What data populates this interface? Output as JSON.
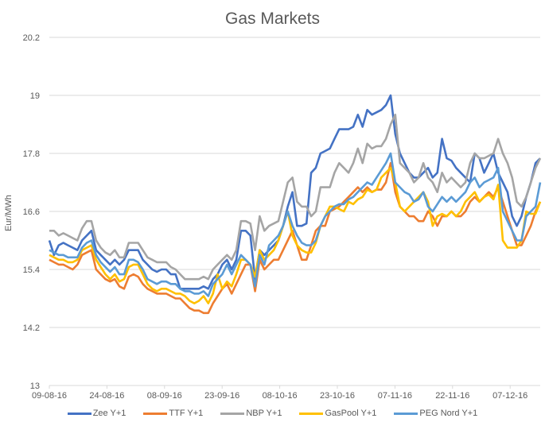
{
  "chart_data": {
    "type": "line",
    "title": "Gas Markets",
    "xlabel": "",
    "ylabel": "Eur/MWh",
    "ylim": [
      13,
      20.2
    ],
    "yticks": [
      13,
      14.2,
      15.4,
      16.6,
      17.8,
      19,
      20.2
    ],
    "ytick_labels": [
      "13",
      "14.2",
      "15.4",
      "16.6",
      "17.8",
      "19",
      "20.2"
    ],
    "xtick_labels": [
      "09-08-16",
      "24-08-16",
      "08-09-16",
      "23-09-16",
      "08-10-16",
      "23-10-16",
      "07-11-16",
      "22-11-16",
      "07-12-16"
    ],
    "grid": true,
    "legend_position": "bottom",
    "series": [
      {
        "name": "Zee Y+1",
        "color": "#4472C4",
        "values": [
          16.0,
          15.7,
          15.9,
          15.95,
          15.9,
          15.85,
          15.8,
          16.0,
          16.1,
          16.2,
          15.8,
          15.7,
          15.6,
          15.5,
          15.6,
          15.5,
          15.6,
          15.8,
          15.8,
          15.8,
          15.6,
          15.5,
          15.4,
          15.35,
          15.4,
          15.4,
          15.3,
          15.3,
          15.0,
          15.0,
          15.0,
          15.0,
          15.0,
          15.05,
          15.0,
          15.2,
          15.3,
          15.5,
          15.6,
          15.4,
          15.6,
          16.2,
          16.2,
          16.1,
          15.2,
          15.8,
          15.7,
          15.8,
          15.9,
          16.0,
          16.3,
          16.7,
          17.0,
          16.3,
          16.3,
          16.35,
          17.4,
          17.5,
          17.8,
          17.85,
          17.9,
          18.1,
          18.3,
          18.3,
          18.3,
          18.35,
          18.6,
          18.35,
          18.7,
          18.6,
          18.65,
          18.7,
          18.8,
          19.0,
          18.2,
          17.8,
          17.6,
          17.4,
          17.3,
          17.3,
          17.4,
          17.5,
          17.3,
          17.4,
          18.1,
          17.7,
          17.65,
          17.5,
          17.4,
          17.3,
          17.2,
          17.8,
          17.7,
          17.4,
          17.6,
          17.8,
          17.4,
          17.2,
          17.0,
          16.5,
          16.3,
          16.5,
          16.9,
          17.2,
          17.6,
          17.7
        ]
      },
      {
        "name": "TTF Y+1",
        "color": "#ED7D31",
        "values": [
          15.6,
          15.55,
          15.5,
          15.5,
          15.45,
          15.4,
          15.5,
          15.7,
          15.75,
          15.8,
          15.4,
          15.3,
          15.2,
          15.15,
          15.2,
          15.05,
          15.0,
          15.25,
          15.3,
          15.25,
          15.1,
          15.0,
          14.95,
          14.9,
          14.9,
          14.9,
          14.85,
          14.8,
          14.8,
          14.7,
          14.6,
          14.55,
          14.55,
          14.5,
          14.5,
          14.7,
          14.85,
          15.0,
          15.1,
          14.9,
          15.1,
          15.3,
          15.5,
          15.5,
          14.95,
          15.6,
          15.4,
          15.5,
          15.6,
          15.6,
          15.8,
          16.0,
          16.2,
          15.9,
          15.6,
          15.6,
          15.9,
          16.2,
          16.3,
          16.3,
          16.6,
          16.65,
          16.7,
          16.8,
          16.9,
          17.0,
          17.1,
          17.0,
          17.1,
          17.0,
          17.05,
          17.05,
          17.2,
          17.6,
          17.0,
          16.7,
          16.6,
          16.5,
          16.5,
          16.4,
          16.4,
          16.6,
          16.5,
          16.3,
          16.5,
          16.5,
          16.6,
          16.5,
          16.5,
          16.6,
          16.8,
          16.9,
          16.8,
          16.9,
          17.0,
          16.9,
          17.1,
          16.8,
          16.5,
          16.2,
          15.9,
          15.9,
          16.1,
          16.3,
          16.6,
          16.8
        ]
      },
      {
        "name": "NBP Y+1",
        "color": "#A5A5A5",
        "values": [
          16.2,
          16.2,
          16.1,
          16.15,
          16.1,
          16.05,
          16.0,
          16.25,
          16.4,
          16.4,
          16.0,
          15.85,
          15.75,
          15.7,
          15.8,
          15.65,
          15.65,
          15.95,
          15.95,
          15.95,
          15.8,
          15.65,
          15.6,
          15.55,
          15.55,
          15.55,
          15.45,
          15.4,
          15.3,
          15.2,
          15.2,
          15.2,
          15.2,
          15.25,
          15.2,
          15.4,
          15.5,
          15.6,
          15.7,
          15.6,
          15.8,
          16.4,
          16.4,
          16.35,
          15.8,
          16.5,
          16.2,
          16.3,
          16.35,
          16.4,
          16.8,
          17.2,
          17.3,
          16.8,
          16.7,
          16.7,
          16.5,
          16.6,
          17.1,
          17.1,
          17.1,
          17.4,
          17.6,
          17.5,
          17.4,
          17.6,
          17.9,
          17.6,
          18.0,
          17.9,
          17.95,
          17.95,
          18.1,
          18.4,
          18.6,
          17.6,
          17.5,
          17.4,
          17.2,
          17.3,
          17.6,
          17.3,
          17.2,
          17.0,
          17.4,
          17.2,
          17.3,
          17.2,
          17.1,
          17.2,
          17.6,
          17.8,
          17.7,
          17.7,
          17.75,
          17.8,
          18.1,
          17.8,
          17.6,
          17.3,
          16.8,
          16.7,
          16.9,
          17.2,
          17.5,
          17.7
        ]
      },
      {
        "name": "GasPool Y+1",
        "color": "#FFC000",
        "values": [
          15.7,
          15.65,
          15.6,
          15.6,
          15.55,
          15.55,
          15.6,
          15.8,
          15.85,
          15.9,
          15.6,
          15.45,
          15.3,
          15.2,
          15.3,
          15.15,
          15.2,
          15.45,
          15.5,
          15.5,
          15.3,
          15.1,
          15.0,
          14.95,
          15.0,
          15.0,
          14.95,
          14.9,
          14.9,
          14.85,
          14.75,
          14.7,
          14.75,
          14.85,
          14.7,
          14.9,
          15.3,
          15.0,
          15.15,
          15.05,
          15.3,
          15.6,
          15.6,
          15.5,
          15.25,
          15.8,
          15.6,
          15.7,
          15.8,
          16.0,
          16.3,
          16.6,
          16.1,
          15.9,
          15.8,
          15.75,
          15.75,
          15.95,
          16.3,
          16.5,
          16.7,
          16.7,
          16.65,
          16.6,
          16.8,
          16.75,
          16.85,
          16.9,
          17.05,
          17.0,
          17.05,
          17.3,
          17.4,
          17.5,
          17.2,
          16.7,
          16.6,
          16.7,
          16.8,
          16.9,
          17.0,
          16.8,
          16.3,
          16.5,
          16.55,
          16.5,
          16.6,
          16.5,
          16.6,
          16.8,
          16.9,
          17.0,
          16.8,
          16.9,
          16.95,
          16.85,
          17.15,
          16.0,
          15.85,
          15.85,
          15.85,
          16.0,
          16.6,
          16.55,
          16.55,
          16.8
        ]
      },
      {
        "name": "PEG Nord Y+1",
        "color": "#5B9BD5",
        "values": [
          15.8,
          15.75,
          15.7,
          15.7,
          15.65,
          15.65,
          15.65,
          15.85,
          15.95,
          16.0,
          15.7,
          15.55,
          15.45,
          15.35,
          15.45,
          15.3,
          15.3,
          15.6,
          15.6,
          15.55,
          15.4,
          15.2,
          15.15,
          15.1,
          15.15,
          15.15,
          15.1,
          15.1,
          15.0,
          14.95,
          14.95,
          14.9,
          14.9,
          14.95,
          14.85,
          15.1,
          15.2,
          15.3,
          15.5,
          15.3,
          15.5,
          15.7,
          15.6,
          15.5,
          15.05,
          15.7,
          15.5,
          15.9,
          16.0,
          16.1,
          16.3,
          16.6,
          16.3,
          16.1,
          15.95,
          15.9,
          15.9,
          16.0,
          16.3,
          16.5,
          16.6,
          16.7,
          16.75,
          16.75,
          16.85,
          16.9,
          17.0,
          17.1,
          17.2,
          17.15,
          17.3,
          17.45,
          17.6,
          17.8,
          17.2,
          17.1,
          17.0,
          16.95,
          16.8,
          16.85,
          17.0,
          16.7,
          16.6,
          16.75,
          16.9,
          16.8,
          16.9,
          16.8,
          16.9,
          17.0,
          17.2,
          17.3,
          17.1,
          17.2,
          17.25,
          17.3,
          17.5,
          16.6,
          16.4,
          16.2,
          16.0,
          16.0,
          16.5,
          16.6,
          16.7,
          17.2
        ]
      }
    ]
  },
  "legend": {
    "items": [
      "Zee Y+1",
      "TTF Y+1",
      "NBP Y+1",
      "GasPool Y+1",
      "PEG Nord Y+1"
    ]
  }
}
